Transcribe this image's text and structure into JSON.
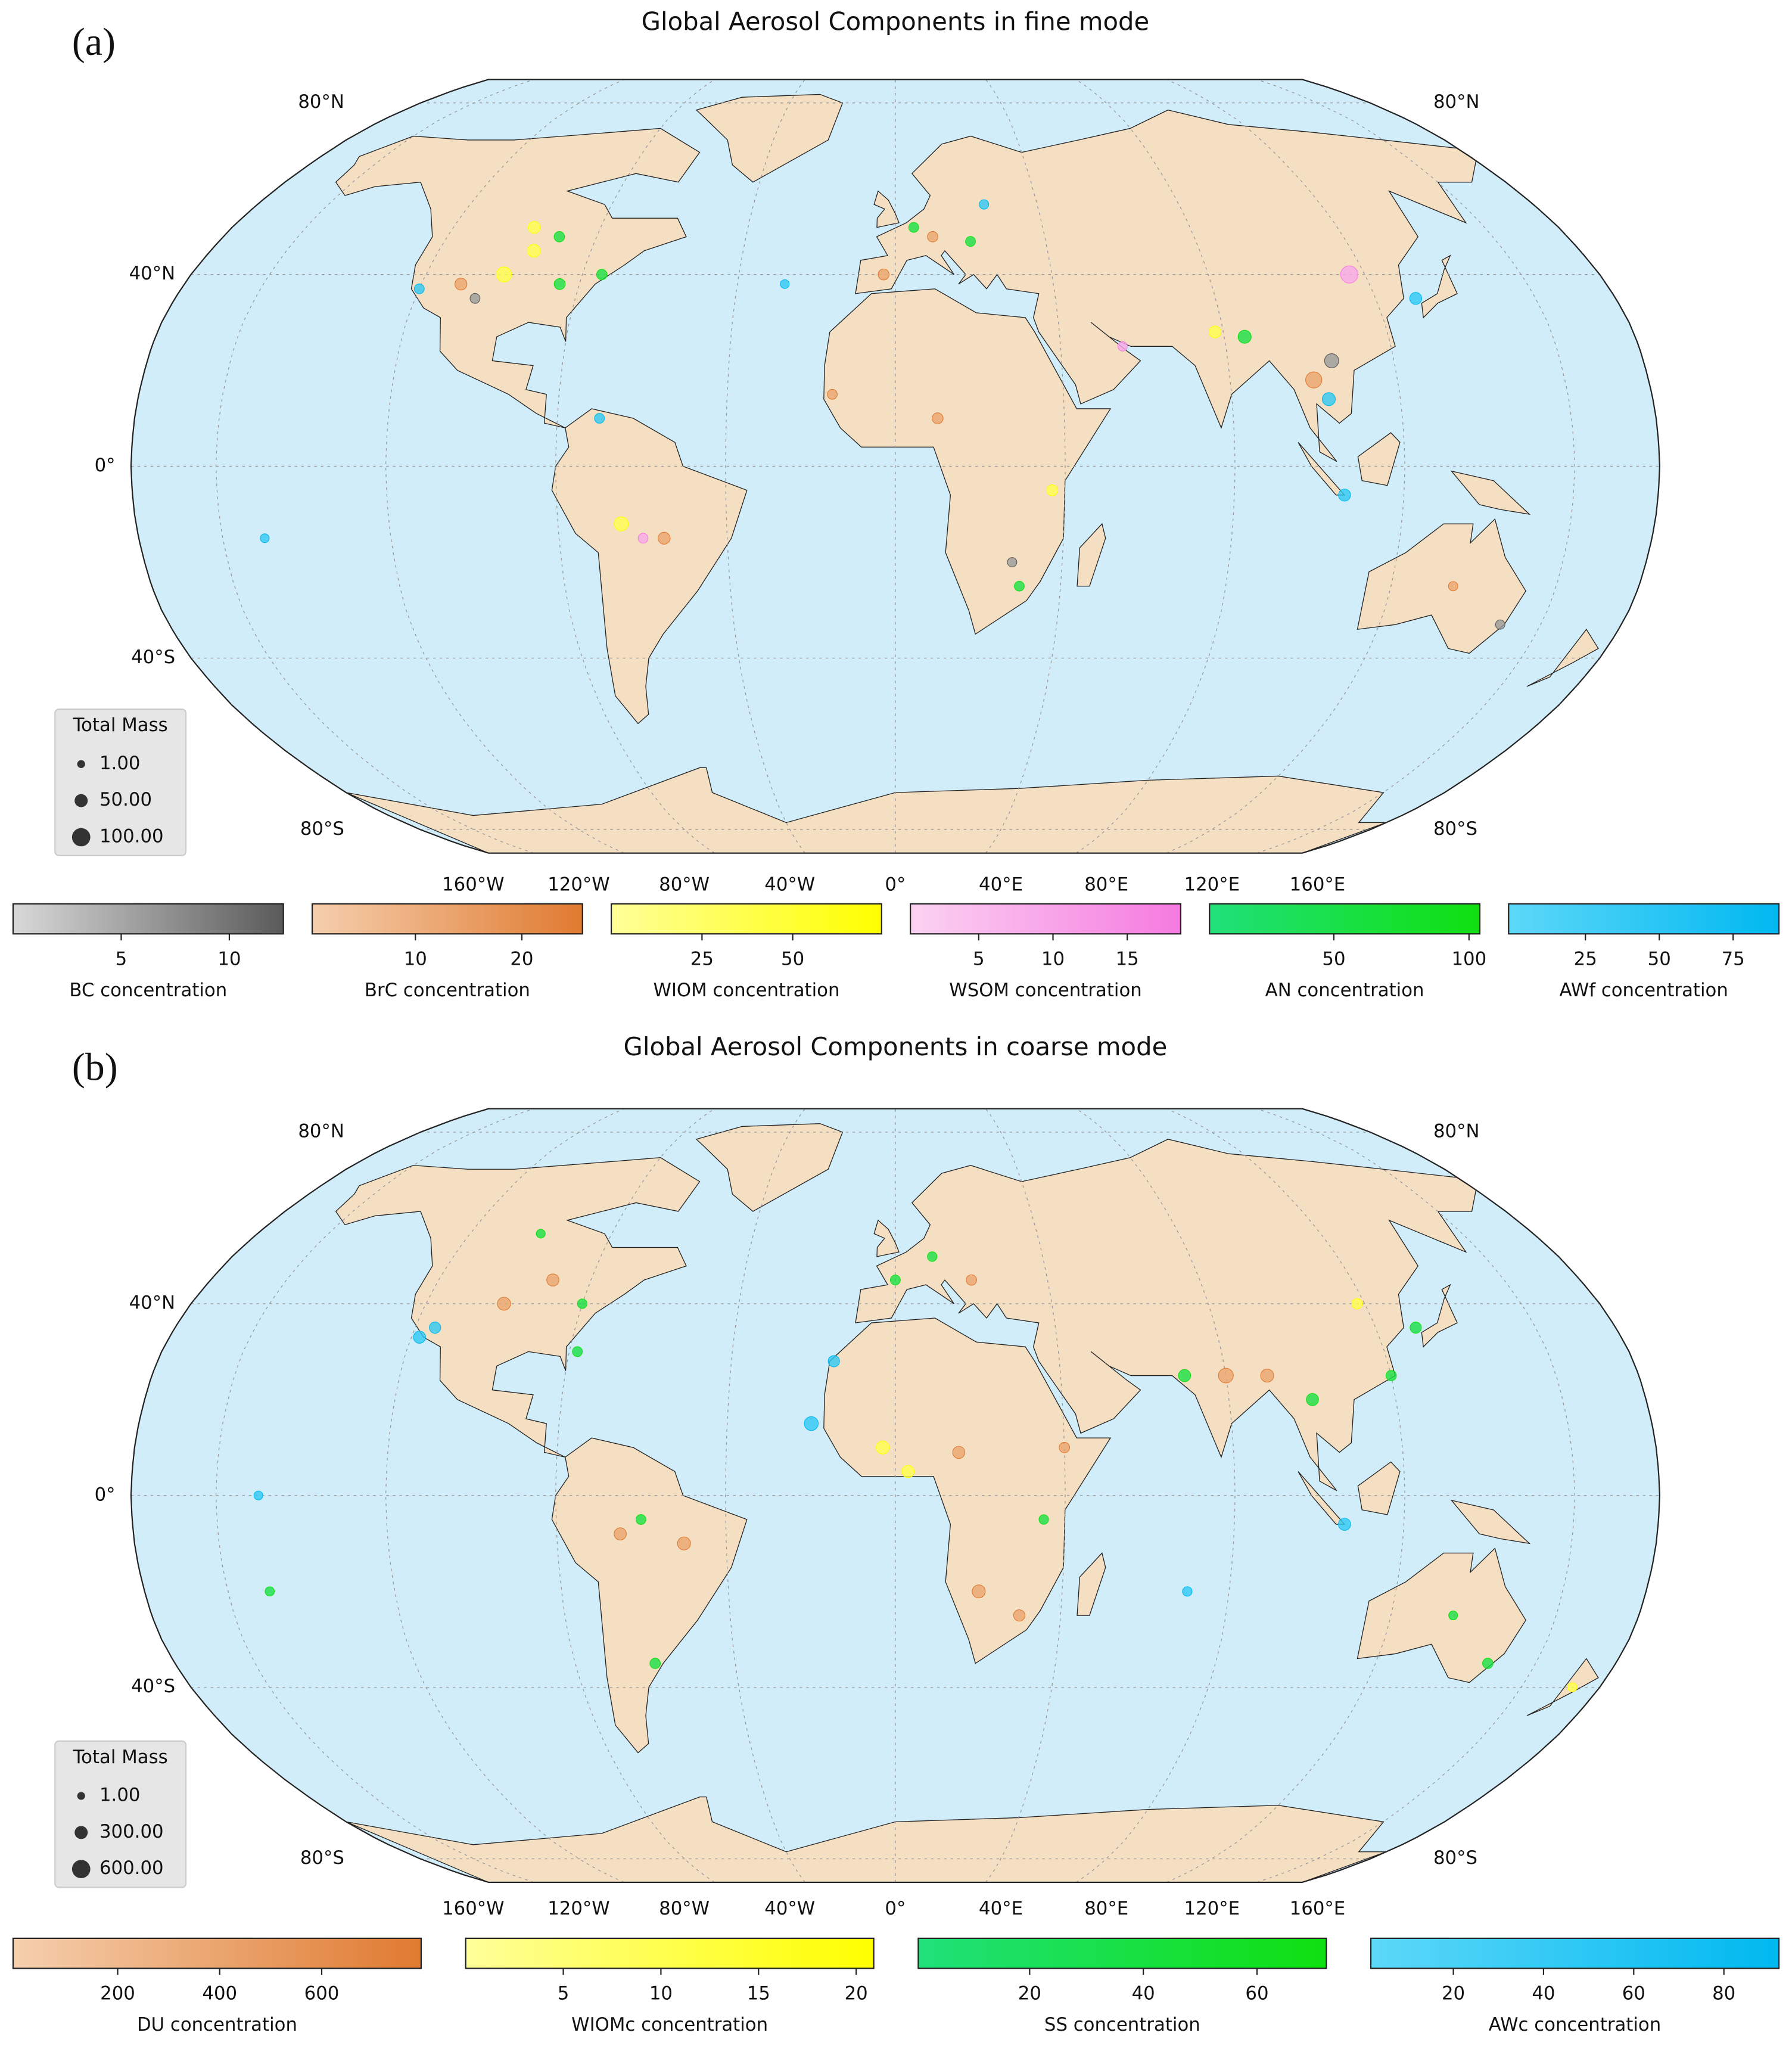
{
  "panels": [
    {
      "label": "(a)",
      "title": "Global Aerosol Components in fine mode",
      "lat_labels": [
        {
          "value": 80,
          "label": "80°N"
        },
        {
          "value": 40,
          "label": "40°N"
        },
        {
          "value": 0,
          "label": "0°"
        },
        {
          "value": -40,
          "label": "40°S"
        },
        {
          "value": -80,
          "label": "80°S"
        }
      ],
      "lon_labels": [
        {
          "value": -160,
          "label": "160°W"
        },
        {
          "value": -120,
          "label": "120°W"
        },
        {
          "value": -80,
          "label": "80°W"
        },
        {
          "value": -40,
          "label": "40°W"
        },
        {
          "value": 0,
          "label": "0°"
        },
        {
          "value": 40,
          "label": "40°E"
        },
        {
          "value": 80,
          "label": "80°E"
        },
        {
          "value": 120,
          "label": "120°E"
        },
        {
          "value": 160,
          "label": "160°E"
        }
      ],
      "legend": {
        "title": "Total Mass",
        "sizes": [
          {
            "value": 1,
            "label": "1.00"
          },
          {
            "value": 50,
            "label": "50.00"
          },
          {
            "value": 100,
            "label": "100.00"
          }
        ]
      },
      "components": [
        {
          "name": "BC concentration",
          "colors": [
            "#d9d9d9",
            "#5a5a5a"
          ],
          "lim": [
            0,
            12.5
          ],
          "ticks": [
            5,
            10
          ],
          "points": [
            {
              "lon": -105,
              "lat": 35,
              "mass": 20
            },
            {
              "lon": 105,
              "lat": 22,
              "mass": 60
            },
            {
              "lon": 150,
              "lat": -33,
              "mass": 15
            },
            {
              "lon": 28,
              "lat": -20,
              "mass": 15
            }
          ]
        },
        {
          "name": "BrC concentration",
          "colors": [
            "#f5cfae",
            "#e07a30"
          ],
          "lim": [
            0.3,
            25.7
          ],
          "ticks": [
            10,
            20
          ],
          "points": [
            {
              "lon": -110,
              "lat": 38,
              "mass": 40
            },
            {
              "lon": 10,
              "lat": 48,
              "mass": 25
            },
            {
              "lon": -3,
              "lat": 40,
              "mass": 30
            },
            {
              "lon": 100,
              "lat": 18,
              "mass": 80
            },
            {
              "lon": 10,
              "lat": 10,
              "mass": 30
            },
            {
              "lon": -15,
              "lat": 15,
              "mass": 20
            },
            {
              "lon": -55,
              "lat": -15,
              "mass": 40
            },
            {
              "lon": 135,
              "lat": -25,
              "mass": 15
            }
          ]
        },
        {
          "name": "WIOM concentration",
          "colors": [
            "#ffff99",
            "#ffff00"
          ],
          "lim": [
            0,
            74.5
          ],
          "ticks": [
            25,
            50
          ],
          "points": [
            {
              "lon": -100,
              "lat": 40,
              "mass": 70
            },
            {
              "lon": -95,
              "lat": 45,
              "mass": 50
            },
            {
              "lon": -98,
              "lat": 50,
              "mass": 40
            },
            {
              "lon": 78,
              "lat": 28,
              "mass": 40
            },
            {
              "lon": 37,
              "lat": -5,
              "mass": 30
            },
            {
              "lon": -65,
              "lat": -12,
              "mass": 60
            }
          ]
        },
        {
          "name": "WSOM concentration",
          "colors": [
            "#fbd3f2",
            "#f57ae0"
          ],
          "lim": [
            0.4,
            18.6
          ],
          "ticks": [
            5,
            10,
            15
          ],
          "points": [
            {
              "lon": 116,
              "lat": 40,
              "mass": 90
            },
            {
              "lon": -60,
              "lat": -15,
              "mass": 20
            },
            {
              "lon": 55,
              "lat": 25,
              "mass": 15
            }
          ]
        },
        {
          "name": "AN concentration",
          "colors": [
            "#20e07a",
            "#10e010"
          ],
          "lim": [
            4,
            104
          ],
          "ticks": [
            50,
            100
          ],
          "points": [
            {
              "lon": -85,
              "lat": 38,
              "mass": 30
            },
            {
              "lon": -75,
              "lat": 40,
              "mass": 25
            },
            {
              "lon": -90,
              "lat": 48,
              "mass": 25
            },
            {
              "lon": 5,
              "lat": 50,
              "mass": 20
            },
            {
              "lon": 20,
              "lat": 47,
              "mass": 20
            },
            {
              "lon": 85,
              "lat": 27,
              "mass": 50
            },
            {
              "lon": 30,
              "lat": -25,
              "mass": 20
            }
          ]
        },
        {
          "name": "AWf concentration",
          "colors": [
            "#5dd8f8",
            "#00b8f0"
          ],
          "lim": [
            -1,
            90.5
          ],
          "ticks": [
            25,
            50,
            75
          ],
          "points": [
            {
              "lon": -120,
              "lat": 37,
              "mass": 20
            },
            {
              "lon": 25,
              "lat": 55,
              "mass": 15
            },
            {
              "lon": 130,
              "lat": 35,
              "mass": 40
            },
            {
              "lon": 103,
              "lat": 14,
              "mass": 50
            },
            {
              "lon": 106,
              "lat": -6,
              "mass": 40
            },
            {
              "lon": -70,
              "lat": 10,
              "mass": 20
            },
            {
              "lon": -150,
              "lat": -15,
              "mass": 10
            },
            {
              "lon": -28,
              "lat": 38,
              "mass": 10
            }
          ]
        }
      ]
    },
    {
      "label": "(b)",
      "title": "Global Aerosol Components in coarse mode",
      "lat_labels": [
        {
          "value": 80,
          "label": "80°N"
        },
        {
          "value": 40,
          "label": "40°N"
        },
        {
          "value": 0,
          "label": "0°"
        },
        {
          "value": -40,
          "label": "40°S"
        },
        {
          "value": -80,
          "label": "80°S"
        }
      ],
      "lon_labels": [
        {
          "value": -160,
          "label": "160°W"
        },
        {
          "value": -120,
          "label": "120°W"
        },
        {
          "value": -80,
          "label": "80°W"
        },
        {
          "value": -40,
          "label": "40°W"
        },
        {
          "value": 0,
          "label": "0°"
        },
        {
          "value": 40,
          "label": "40°E"
        },
        {
          "value": 80,
          "label": "80°E"
        },
        {
          "value": 120,
          "label": "120°E"
        },
        {
          "value": 160,
          "label": "160°E"
        }
      ],
      "legend": {
        "title": "Total Mass",
        "sizes": [
          {
            "value": 1,
            "label": "1.00"
          },
          {
            "value": 300,
            "label": "300.00"
          },
          {
            "value": 600,
            "label": "600.00"
          }
        ]
      },
      "components": [
        {
          "name": "DU concentration",
          "colors": [
            "#f5cfae",
            "#e07a30"
          ],
          "lim": [
            -5,
            795
          ],
          "ticks": [
            200,
            400,
            600
          ],
          "points": [
            {
              "lon": -100,
              "lat": 40,
              "mass": 300
            },
            {
              "lon": -90,
              "lat": 45,
              "mass": 250
            },
            {
              "lon": 20,
              "lat": 45,
              "mass": 150
            },
            {
              "lon": 15,
              "lat": 9,
              "mass": 250
            },
            {
              "lon": 40,
              "lat": 10,
              "mass": 150
            },
            {
              "lon": 20,
              "lat": -20,
              "mass": 300
            },
            {
              "lon": 30,
              "lat": -25,
              "mass": 200
            },
            {
              "lon": 80,
              "lat": 25,
              "mass": 400
            },
            {
              "lon": 90,
              "lat": 25,
              "mass": 300
            },
            {
              "lon": -65,
              "lat": -8,
              "mass": 250
            },
            {
              "lon": -50,
              "lat": -10,
              "mass": 300
            }
          ]
        },
        {
          "name": "WIOMc concentration",
          "colors": [
            "#ffff99",
            "#ffff00"
          ],
          "lim": [
            0,
            20.9
          ],
          "ticks": [
            5,
            10,
            15,
            20
          ],
          "points": [
            {
              "lon": -3,
              "lat": 10,
              "mass": 300
            },
            {
              "lon": 3,
              "lat": 5,
              "mass": 250
            },
            {
              "lon": 118,
              "lat": 40,
              "mass": 150
            },
            {
              "lon": 173,
              "lat": -40,
              "mass": 80
            }
          ]
        },
        {
          "name": "SS concentration",
          "colors": [
            "#20e07a",
            "#10e010"
          ],
          "lim": [
            0.4,
            72.2
          ],
          "ticks": [
            20,
            40,
            60
          ],
          "points": [
            {
              "lon": -78,
              "lat": 30,
              "mass": 120
            },
            {
              "lon": -80,
              "lat": 40,
              "mass": 100
            },
            {
              "lon": -100,
              "lat": 55,
              "mass": 60
            },
            {
              "lon": 0,
              "lat": 45,
              "mass": 120
            },
            {
              "lon": 10,
              "lat": 50,
              "mass": 100
            },
            {
              "lon": 35,
              "lat": -5,
              "mass": 100
            },
            {
              "lon": 70,
              "lat": 25,
              "mass": 250
            },
            {
              "lon": 100,
              "lat": 20,
              "mass": 250
            },
            {
              "lon": 130,
              "lat": 35,
              "mass": 200
            },
            {
              "lon": 120,
              "lat": 25,
              "mass": 150
            },
            {
              "lon": -60,
              "lat": -35,
              "mass": 150
            },
            {
              "lon": -60,
              "lat": -5,
              "mass": 120
            },
            {
              "lon": 135,
              "lat": -25,
              "mass": 60
            },
            {
              "lon": 148,
              "lat": -35,
              "mass": 150
            },
            {
              "lon": -150,
              "lat": -20,
              "mass": 80
            }
          ]
        },
        {
          "name": "AWc concentration",
          "colors": [
            "#5dd8f8",
            "#00b8f0"
          ],
          "lim": [
            1.7,
            92.2
          ],
          "ticks": [
            20,
            40,
            60,
            80
          ],
          "points": [
            {
              "lon": -115,
              "lat": 35,
              "mass": 200
            },
            {
              "lon": -118,
              "lat": 33,
              "mass": 250
            },
            {
              "lon": -20,
              "lat": 15,
              "mass": 350
            },
            {
              "lon": -15,
              "lat": 28,
              "mass": 200
            },
            {
              "lon": 106,
              "lat": -6,
              "mass": 250
            },
            {
              "lon": 70,
              "lat": -20,
              "mass": 100
            },
            {
              "lon": -150,
              "lat": 0,
              "mass": 60
            }
          ]
        }
      ]
    }
  ]
}
